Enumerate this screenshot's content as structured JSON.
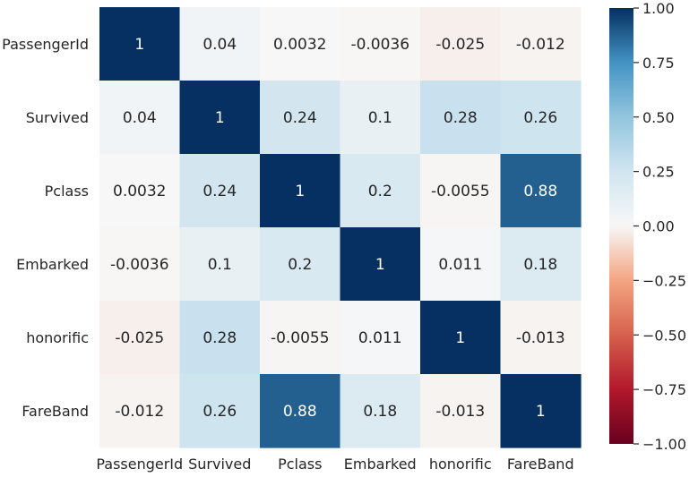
{
  "chart_data": {
    "type": "heatmap",
    "x_labels": [
      "PassengerId",
      "Survived",
      "Pclass",
      "Embarked",
      "honorific",
      "FareBand"
    ],
    "y_labels": [
      "PassengerId",
      "Survived",
      "Pclass",
      "Embarked",
      "honorific",
      "FareBand"
    ],
    "values": [
      [
        1,
        0.04,
        0.0032,
        -0.0036,
        -0.025,
        -0.012
      ],
      [
        0.04,
        1,
        0.24,
        0.1,
        0.28,
        0.26
      ],
      [
        0.0032,
        0.24,
        1,
        0.2,
        -0.0055,
        0.88
      ],
      [
        -0.0036,
        0.1,
        0.2,
        1,
        0.011,
        0.18
      ],
      [
        -0.025,
        0.28,
        -0.0055,
        0.011,
        1,
        -0.013
      ],
      [
        -0.012,
        0.26,
        0.88,
        0.18,
        -0.013,
        1
      ]
    ],
    "cell_labels": [
      [
        "1",
        "0.04",
        "0.0032",
        "-0.0036",
        "-0.025",
        "-0.012"
      ],
      [
        "0.04",
        "1",
        "0.24",
        "0.1",
        "0.28",
        "0.26"
      ],
      [
        "0.0032",
        "0.24",
        "1",
        "0.2",
        "-0.0055",
        "0.88"
      ],
      [
        "-0.0036",
        "0.1",
        "0.2",
        "1",
        "0.011",
        "0.18"
      ],
      [
        "-0.025",
        "0.28",
        "-0.0055",
        "0.011",
        "1",
        "-0.013"
      ],
      [
        "-0.012",
        "0.26",
        "0.88",
        "0.18",
        "-0.013",
        "1"
      ]
    ],
    "colormap": "RdBu",
    "vmin": -1.0,
    "vmax": 1.0,
    "colorbar_ticks": [
      1.0,
      0.75,
      0.5,
      0.25,
      0.0,
      -0.25,
      -0.5,
      -0.75,
      -1.0
    ],
    "colorbar_tick_labels": [
      "1.00",
      "0.75",
      "0.50",
      "0.25",
      "0.00",
      "−0.25",
      "−0.50",
      "−0.75",
      "−1.00"
    ],
    "grid": false,
    "legend": "colorbar-right"
  }
}
